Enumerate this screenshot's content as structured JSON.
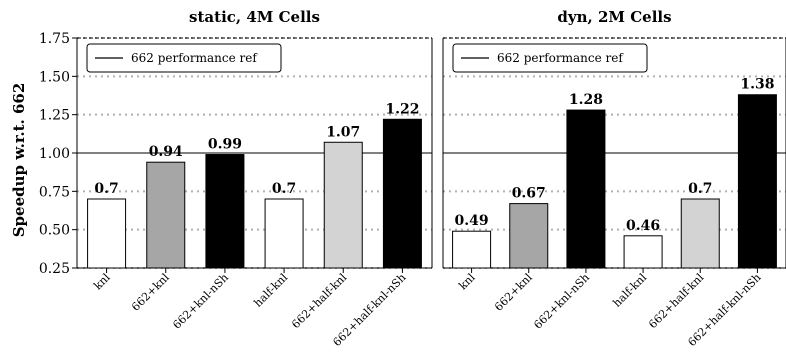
{
  "figure": {
    "ylabel": "Speedup w.r.t. 662"
  },
  "colors": {
    "knl": "#ffffff",
    "662+knl": "#a6a6a6",
    "662+knl-nSh": "#000000",
    "half-knl": "#ffffff",
    "662+half-knl": "#d3d3d3",
    "662+half-knl-nSh": "#000000",
    "reference_line": "#000000",
    "grid": "#b0b0b0"
  },
  "chart_data": [
    {
      "type": "bar",
      "title": "static, 4M Cells",
      "xlabel": "",
      "ylabel": "Speedup w.r.t. 662",
      "categories": [
        "knl",
        "662+knl",
        "662+knl-nSh",
        "half-knl",
        "662+half-knl",
        "662+half-knl-nSh"
      ],
      "values": [
        0.7,
        0.94,
        0.99,
        0.7,
        1.07,
        1.22
      ],
      "value_labels": [
        "0.7",
        "0.94",
        "0.99",
        "0.7",
        "1.07",
        "1.22"
      ],
      "ylim": [
        0.25,
        1.75
      ],
      "yticks": [
        "0.25",
        "0.50",
        "0.75",
        "1.00",
        "1.25",
        "1.50",
        "1.75"
      ],
      "reference": {
        "label": "662 performance ref",
        "value": 1.0
      },
      "grid": "horizontal dotted",
      "legend_position": "top-left"
    },
    {
      "type": "bar",
      "title": "dyn, 2M Cells",
      "xlabel": "",
      "ylabel": "",
      "categories": [
        "knl",
        "662+knl",
        "662+knl-nSh",
        "half-knl",
        "662+half-knl",
        "662+half-knl-nSh"
      ],
      "values": [
        0.49,
        0.67,
        1.28,
        0.46,
        0.7,
        1.38
      ],
      "value_labels": [
        "0.49",
        "0.67",
        "1.28",
        "0.46",
        "0.7",
        "1.38"
      ],
      "ylim": [
        0.25,
        1.75
      ],
      "yticks": [],
      "reference": {
        "label": "662 performance ref",
        "value": 1.0
      },
      "grid": "horizontal dotted",
      "legend_position": "top-left"
    }
  ]
}
